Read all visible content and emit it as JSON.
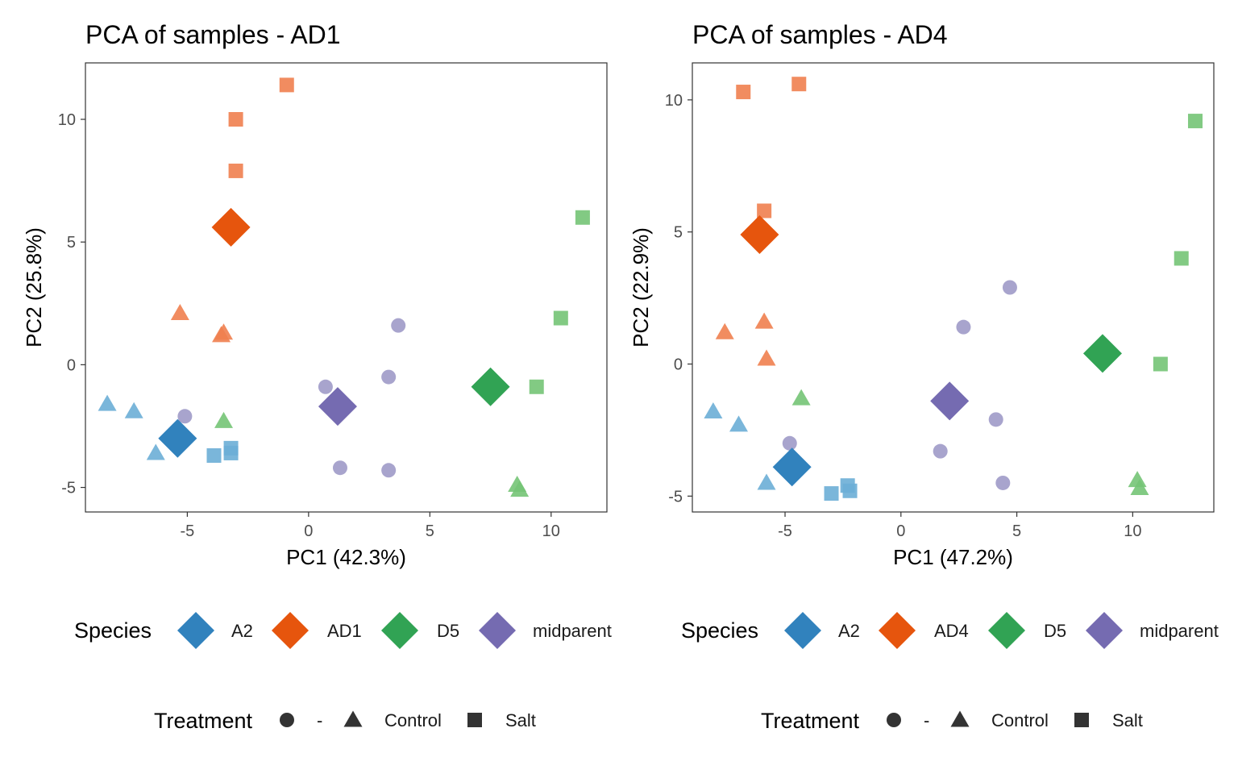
{
  "species_colors": {
    "A2": "#3182bd",
    "AD1": "#e6550d",
    "AD4": "#e6550d",
    "D5": "#31a354",
    "midparent": "#756bb1"
  },
  "point_colors": {
    "A2": "#6baed6",
    "AD1": "#f0804f",
    "AD4": "#f0804f",
    "D5": "#74c476",
    "midparent": "#9e9ac8"
  },
  "shape_icons": {
    "-": "circle",
    "Control": "triangle",
    "Salt": "square",
    "centroid": "diamond"
  },
  "chart_data": [
    {
      "type": "scatter",
      "title": "PCA of samples - AD1",
      "xlabel": "PC1 (42.3%)",
      "ylabel": "PC2 (25.8%)",
      "xlim": [
        -9.2,
        12.3
      ],
      "ylim": [
        -6.0,
        12.3
      ],
      "xticks": [
        -5,
        0,
        5,
        10
      ],
      "xtick_labels": [
        "-5",
        "0",
        "5",
        "10"
      ],
      "yticks": [
        -5,
        0,
        5,
        10
      ],
      "ytick_labels": [
        "-5",
        "0",
        "5",
        "10"
      ],
      "grid": false,
      "legend_position": "bottom",
      "species_legend": {
        "title": "Species",
        "items": [
          "A2",
          "AD1",
          "D5",
          "midparent"
        ]
      },
      "treatment_legend": {
        "title": "Treatment",
        "items": [
          "-",
          "Control",
          "Salt"
        ]
      },
      "points": [
        {
          "species": "A2",
          "treatment": "Control",
          "x": -8.3,
          "y": -1.6
        },
        {
          "species": "A2",
          "treatment": "Control",
          "x": -7.2,
          "y": -1.9
        },
        {
          "species": "A2",
          "treatment": "Control",
          "x": -6.3,
          "y": -3.6
        },
        {
          "species": "A2",
          "treatment": "Salt",
          "x": -3.9,
          "y": -3.7
        },
        {
          "species": "A2",
          "treatment": "Salt",
          "x": -3.2,
          "y": -3.4
        },
        {
          "species": "A2",
          "treatment": "Salt",
          "x": -3.2,
          "y": -3.6
        },
        {
          "species": "AD1",
          "treatment": "Control",
          "x": -5.3,
          "y": 2.1
        },
        {
          "species": "AD1",
          "treatment": "Control",
          "x": -3.6,
          "y": 1.2
        },
        {
          "species": "AD1",
          "treatment": "Control",
          "x": -3.5,
          "y": 1.3
        },
        {
          "species": "AD1",
          "treatment": "Salt",
          "x": -3.0,
          "y": 10.0
        },
        {
          "species": "AD1",
          "treatment": "Salt",
          "x": -3.0,
          "y": 7.9
        },
        {
          "species": "AD1",
          "treatment": "Salt",
          "x": -0.9,
          "y": 11.4
        },
        {
          "species": "D5",
          "treatment": "Control",
          "x": -3.5,
          "y": -2.3
        },
        {
          "species": "D5",
          "treatment": "Control",
          "x": 8.6,
          "y": -4.9
        },
        {
          "species": "D5",
          "treatment": "Control",
          "x": 8.7,
          "y": -5.1
        },
        {
          "species": "D5",
          "treatment": "Salt",
          "x": 9.4,
          "y": -0.9
        },
        {
          "species": "D5",
          "treatment": "Salt",
          "x": 10.4,
          "y": 1.9
        },
        {
          "species": "D5",
          "treatment": "Salt",
          "x": 11.3,
          "y": 6.0
        },
        {
          "species": "midparent",
          "treatment": "-",
          "x": -5.1,
          "y": -2.1
        },
        {
          "species": "midparent",
          "treatment": "-",
          "x": 0.7,
          "y": -0.9
        },
        {
          "species": "midparent",
          "treatment": "-",
          "x": 1.3,
          "y": -4.2
        },
        {
          "species": "midparent",
          "treatment": "-",
          "x": 3.3,
          "y": -0.5
        },
        {
          "species": "midparent",
          "treatment": "-",
          "x": 3.3,
          "y": -4.3
        },
        {
          "species": "midparent",
          "treatment": "-",
          "x": 3.7,
          "y": 1.6
        }
      ],
      "centroids": [
        {
          "species": "A2",
          "x": -5.4,
          "y": -3.0
        },
        {
          "species": "AD1",
          "x": -3.2,
          "y": 5.6
        },
        {
          "species": "D5",
          "x": 7.5,
          "y": -0.9
        },
        {
          "species": "midparent",
          "x": 1.2,
          "y": -1.7
        }
      ]
    },
    {
      "type": "scatter",
      "title": "PCA of samples - AD4",
      "xlabel": "PC1 (47.2%)",
      "ylabel": "PC2 (22.9%)",
      "xlim": [
        -9.0,
        13.5
      ],
      "ylim": [
        -5.6,
        11.4
      ],
      "xticks": [
        -5,
        0,
        5,
        10
      ],
      "xtick_labels": [
        "-5",
        "0",
        "5",
        "10"
      ],
      "yticks": [
        -5,
        0,
        5,
        10
      ],
      "ytick_labels": [
        "-5",
        "0",
        "5",
        "10"
      ],
      "grid": false,
      "legend_position": "bottom",
      "species_legend": {
        "title": "Species",
        "items": [
          "A2",
          "AD4",
          "D5",
          "midparent"
        ]
      },
      "treatment_legend": {
        "title": "Treatment",
        "items": [
          "-",
          "Control",
          "Salt"
        ]
      },
      "points": [
        {
          "species": "A2",
          "treatment": "Control",
          "x": -8.1,
          "y": -1.8
        },
        {
          "species": "A2",
          "treatment": "Control",
          "x": -7.0,
          "y": -2.3
        },
        {
          "species": "A2",
          "treatment": "Control",
          "x": -5.8,
          "y": -4.5
        },
        {
          "species": "A2",
          "treatment": "Salt",
          "x": -3.0,
          "y": -4.9
        },
        {
          "species": "A2",
          "treatment": "Salt",
          "x": -2.3,
          "y": -4.6
        },
        {
          "species": "A2",
          "treatment": "Salt",
          "x": -2.2,
          "y": -4.8
        },
        {
          "species": "AD4",
          "treatment": "Control",
          "x": -7.6,
          "y": 1.2
        },
        {
          "species": "AD4",
          "treatment": "Control",
          "x": -5.9,
          "y": 1.6
        },
        {
          "species": "AD4",
          "treatment": "Control",
          "x": -5.8,
          "y": 0.2
        },
        {
          "species": "AD4",
          "treatment": "Salt",
          "x": -6.8,
          "y": 10.3
        },
        {
          "species": "AD4",
          "treatment": "Salt",
          "x": -4.4,
          "y": 10.6
        },
        {
          "species": "AD4",
          "treatment": "Salt",
          "x": -5.9,
          "y": 5.8
        },
        {
          "species": "D5",
          "treatment": "Control",
          "x": -4.3,
          "y": -1.3
        },
        {
          "species": "D5",
          "treatment": "Control",
          "x": 10.2,
          "y": -4.4
        },
        {
          "species": "D5",
          "treatment": "Control",
          "x": 10.3,
          "y": -4.7
        },
        {
          "species": "D5",
          "treatment": "Salt",
          "x": 11.2,
          "y": 0.0
        },
        {
          "species": "D5",
          "treatment": "Salt",
          "x": 12.1,
          "y": 4.0
        },
        {
          "species": "D5",
          "treatment": "Salt",
          "x": 12.7,
          "y": 9.2
        },
        {
          "species": "midparent",
          "treatment": "-",
          "x": -4.8,
          "y": -3.0
        },
        {
          "species": "midparent",
          "treatment": "-",
          "x": 1.7,
          "y": -3.3
        },
        {
          "species": "midparent",
          "treatment": "-",
          "x": 2.7,
          "y": 1.4
        },
        {
          "species": "midparent",
          "treatment": "-",
          "x": 4.1,
          "y": -2.1
        },
        {
          "species": "midparent",
          "treatment": "-",
          "x": 4.4,
          "y": -4.5
        },
        {
          "species": "midparent",
          "treatment": "-",
          "x": 4.7,
          "y": 2.9
        }
      ],
      "centroids": [
        {
          "species": "A2",
          "x": -4.7,
          "y": -3.9
        },
        {
          "species": "AD4",
          "x": -6.1,
          "y": 4.9
        },
        {
          "species": "D5",
          "x": 8.7,
          "y": 0.4
        },
        {
          "species": "midparent",
          "x": 2.1,
          "y": -1.4
        }
      ]
    }
  ]
}
